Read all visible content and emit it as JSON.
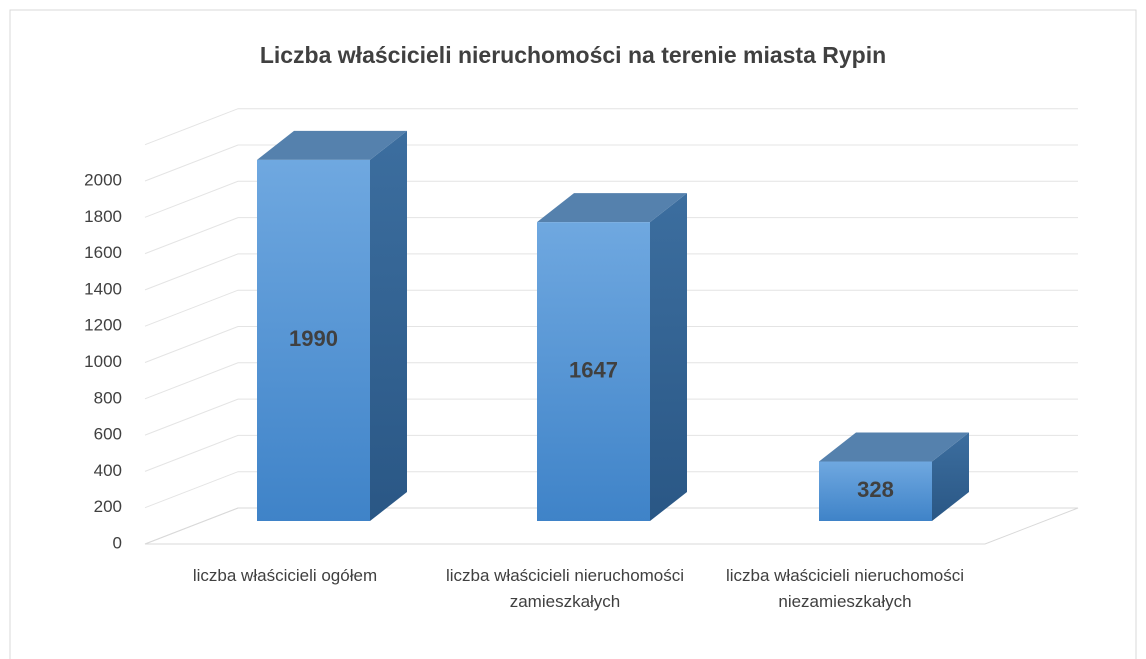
{
  "chart_data": {
    "type": "bar3d",
    "title": "Liczba właścicieli nieruchomości na terenie miasta Rypin",
    "categories": [
      "liczba właścicieli ogółem",
      "liczba właścicieli nieruchomości zamieszkałych",
      "liczba właścicieli nieruchomości niezamieszkałych"
    ],
    "values": [
      1990,
      1647,
      328
    ],
    "color": "#5b9bd5",
    "ylim": [
      0,
      2200
    ],
    "yticks": [
      0,
      200,
      400,
      600,
      800,
      1000,
      1200,
      1400,
      1600,
      1800,
      2000
    ],
    "grid": true
  }
}
